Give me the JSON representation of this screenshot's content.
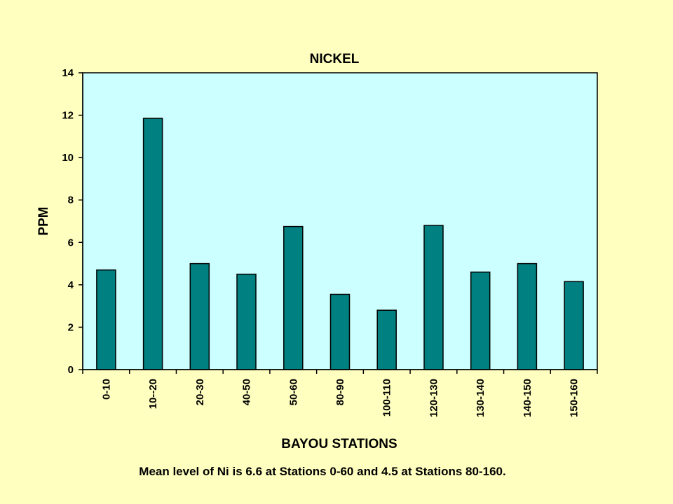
{
  "chart_data": {
    "type": "bar",
    "title": "NICKEL",
    "xlabel": "BAYOU STATIONS",
    "ylabel": "PPM",
    "categories": [
      "0-10",
      "10--20",
      "20-30",
      "40-50",
      "50-60",
      "80-90",
      "100-110",
      "120-130",
      "130-140",
      "140-150",
      "150-160"
    ],
    "values": [
      4.7,
      11.85,
      5.0,
      4.5,
      6.75,
      3.55,
      2.8,
      6.8,
      4.6,
      5.0,
      4.15
    ],
    "ylim": [
      0,
      14
    ],
    "yticks": [
      0,
      2,
      4,
      6,
      8,
      10,
      12,
      14
    ],
    "grid": false,
    "legend": "none",
    "colors": {
      "bar_fill": "#008080",
      "plot_background": "#ccffff",
      "page_background": "#ffffc0"
    }
  },
  "caption": "Mean level of Ni is 6.6 at Stations 0-60 and 4.5 at Stations 80-160."
}
